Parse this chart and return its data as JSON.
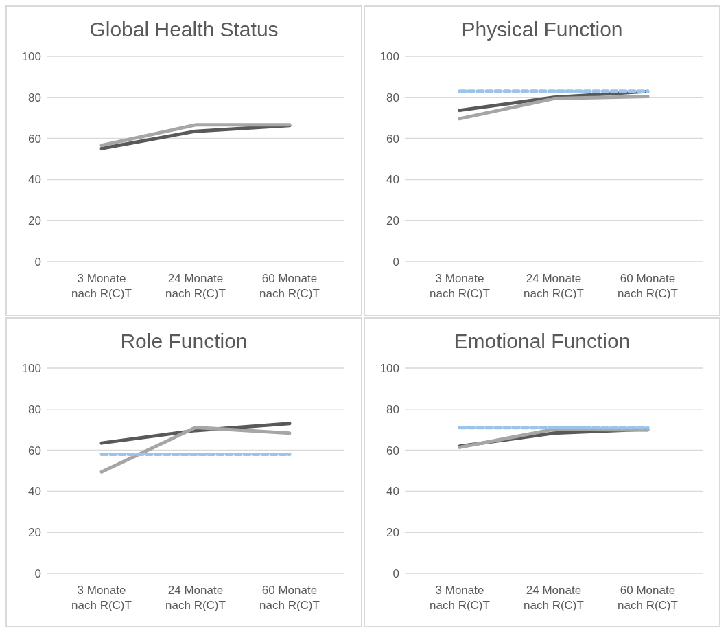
{
  "chart_data": [
    {
      "type": "line",
      "title": "Global Health Status",
      "categories": [
        "3 Monate nach R(C)T",
        "24 Monate nach R(C)T",
        "60 Monate nach R(C)T"
      ],
      "series": [
        {
          "color": "#595959",
          "values": [
            55.1,
            63.5,
            66.3
          ]
        },
        {
          "color": "#a6a6a6",
          "values": [
            56.6,
            66.6,
            66.6
          ]
        }
      ],
      "ylim": [
        0,
        100
      ],
      "yticks": [
        0,
        20,
        40,
        60,
        80,
        100
      ],
      "grid": "y",
      "legend": false
    },
    {
      "type": "line",
      "title": "Physical Function",
      "categories": [
        "3 Monate nach R(C)T",
        "24 Monate nach R(C)T",
        "60 Monate nach R(C)T"
      ],
      "series": [
        {
          "color": "#595959",
          "values": [
            73.7,
            80,
            82.9
          ]
        },
        {
          "color": "#a6a6a6",
          "values": [
            69.6,
            79.4,
            80.4
          ]
        },
        {
          "color": "#9dc3e6",
          "values": [
            83,
            83,
            83
          ],
          "line_style": "dashed"
        }
      ],
      "ylim": [
        0,
        100
      ],
      "yticks": [
        0,
        20,
        40,
        60,
        80,
        100
      ],
      "grid": "y",
      "legend": false
    },
    {
      "type": "line",
      "title": "Role Function",
      "categories": [
        "3 Monate nach R(C)T",
        "24 Monate nach R(C)T",
        "60 Monate nach R(C)T"
      ],
      "series": [
        {
          "color": "#595959",
          "values": [
            63.5,
            69.6,
            73
          ]
        },
        {
          "color": "#a6a6a6",
          "values": [
            49.4,
            71.1,
            68.3
          ]
        },
        {
          "color": "#9dc3e6",
          "values": [
            58,
            58,
            58
          ],
          "line_style": "dashed"
        }
      ],
      "ylim": [
        0,
        100
      ],
      "yticks": [
        0,
        20,
        40,
        60,
        80,
        100
      ],
      "grid": "y",
      "legend": false
    },
    {
      "type": "line",
      "title": "Emotional Function",
      "categories": [
        "3 Monate nach R(C)T",
        "24 Monate nach R(C)T",
        "60 Monate nach R(C)T"
      ],
      "series": [
        {
          "color": "#595959",
          "values": [
            62,
            68.3,
            70.2
          ]
        },
        {
          "color": "#a6a6a6",
          "values": [
            61.4,
            70.2,
            69.8
          ]
        },
        {
          "color": "#9dc3e6",
          "values": [
            71,
            71,
            71
          ],
          "line_style": "dashed"
        }
      ],
      "ylim": [
        0,
        100
      ],
      "yticks": [
        0,
        20,
        40,
        60,
        80,
        100
      ],
      "grid": "y",
      "legend": false
    }
  ]
}
